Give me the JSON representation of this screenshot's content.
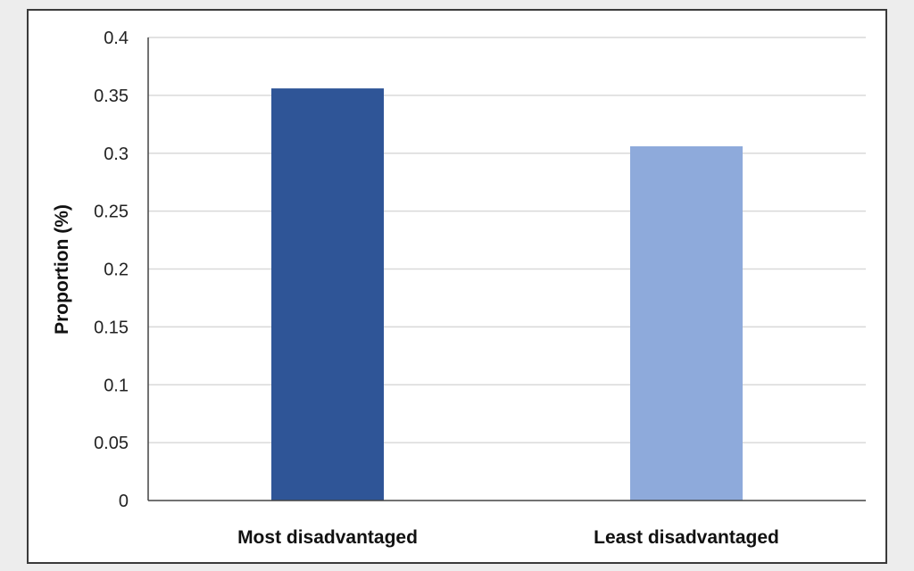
{
  "chart_data": {
    "type": "bar",
    "categories": [
      "Most disadvantaged",
      "Least disadvantaged"
    ],
    "values": [
      0.356,
      0.306
    ],
    "colors": [
      "#2f5597",
      "#8eaadb"
    ],
    "title": "",
    "xlabel": "",
    "ylabel": "Proportion (%)",
    "ylim": [
      0,
      0.4
    ],
    "yticks": [
      0,
      0.05,
      0.1,
      0.15,
      0.2,
      0.25,
      0.3,
      0.35,
      0.4
    ],
    "ytick_labels": [
      "0",
      "0.05",
      "0.1",
      "0.15",
      "0.2",
      "0.25",
      "0.3",
      "0.35",
      "0.4"
    ],
    "grid": true,
    "legend": "none"
  }
}
